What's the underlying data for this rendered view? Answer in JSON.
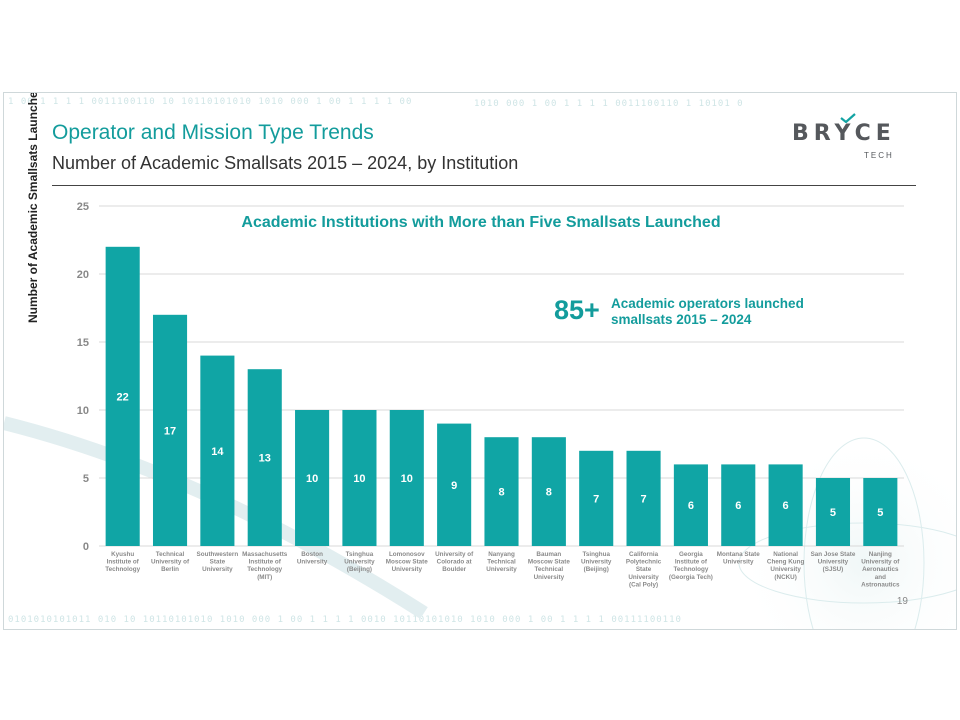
{
  "slide": {
    "title": "Operator and Mission Type Trends",
    "subtitle": "Number of Academic Smallsats 2015 – 2024, by Institution",
    "page_number": "19",
    "logo": {
      "name": "BRYCE",
      "tagline": "TECH"
    },
    "callout": {
      "number": "85+",
      "text": "Academic operators launched\nsmallsats 2015 – 2024"
    },
    "binary_top": "1 00 1 1 1 1 0011100110 10 10110101010 1010 000  1 00 1 1 1 1   00",
    "binary_top_right": "1010 000   1 00 1 1 1 1 0011100110   1 10101 0",
    "binary_bottom": "0101010101011  010 10 10110101010 1010 000   1 00 1 1 1 1 0010 10110101010 1010 000   1 00 1 1 1 1 00111100110"
  },
  "chart_data": {
    "type": "bar",
    "title": "Academic Institutions with More than Five Smallsats Launched",
    "ylabel": "Number of Academic Smallsats Launched",
    "xlabel": "",
    "ylim": [
      0,
      25
    ],
    "yticks": [
      0,
      5,
      10,
      15,
      20,
      25
    ],
    "grid": true,
    "color": "#10a5a5",
    "categories": [
      "Kyushu\nInstitute of\nTechnology",
      "Technical\nUniversity of\nBerlin",
      "Southwestern\nState\nUniversity",
      "Massachusetts\nInstitute of\nTechnology\n(MIT)",
      "Boston\nUniversity",
      "Tsinghua\nUniversity\n(Beijing)",
      "Lomonosov\nMoscow State\nUniversity",
      "University of\nColorado at\nBoulder",
      "Nanyang\nTechnical\nUniversity",
      "Bauman\nMoscow State\nTechnical\nUniversity",
      "Tsinghua\nUniversity\n(Beijing)",
      "California\nPolytechnic\nState\nUniversity\n(Cal Poly)",
      "Georgia\nInstitute of\nTechnology\n(Georgia Tech)",
      "Montana State\nUniversity",
      "National\nCheng Kung\nUniversity\n(NCKU)",
      "San Jose State\nUniversity\n(SJSU)",
      "Nanjing\nUniversity of\nAeronautics\nand\nAstronautics"
    ],
    "values": [
      22,
      17,
      14,
      13,
      10,
      10,
      10,
      9,
      8,
      8,
      7,
      7,
      6,
      6,
      6,
      5,
      5
    ]
  }
}
